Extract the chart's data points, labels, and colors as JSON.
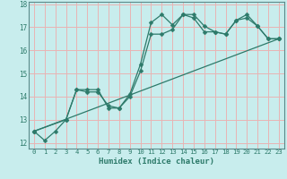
{
  "title": "",
  "xlabel": "Humidex (Indice chaleur)",
  "background_color": "#c8eded",
  "line_color": "#2d7a6a",
  "grid_color": "#e8b4b4",
  "spine_color": "#5a8a8a",
  "xlim": [
    -0.5,
    23.5
  ],
  "ylim": [
    11.75,
    18.1
  ],
  "yticks": [
    12,
    13,
    14,
    15,
    16,
    17,
    18
  ],
  "xticks": [
    0,
    1,
    2,
    3,
    4,
    5,
    6,
    7,
    8,
    9,
    10,
    11,
    12,
    13,
    14,
    15,
    16,
    17,
    18,
    19,
    20,
    21,
    22,
    23
  ],
  "line1_x": [
    0,
    1,
    2,
    3,
    4,
    5,
    6,
    7,
    8,
    9,
    10,
    11,
    12,
    13,
    14,
    15,
    16,
    17,
    18,
    19,
    20,
    21,
    22,
    23
  ],
  "line1_y": [
    12.5,
    12.1,
    12.5,
    13.0,
    14.3,
    14.3,
    14.3,
    13.5,
    13.5,
    14.1,
    15.4,
    17.2,
    17.55,
    17.1,
    17.55,
    17.55,
    17.05,
    16.8,
    16.7,
    17.3,
    17.55,
    17.05,
    16.5,
    16.5
  ],
  "line2_x": [
    0,
    3,
    4,
    5,
    6,
    7,
    8,
    9,
    10,
    11,
    12,
    13,
    14,
    15,
    16,
    17,
    18,
    19,
    20,
    21,
    22,
    23
  ],
  "line2_y": [
    12.5,
    13.0,
    14.3,
    14.2,
    14.2,
    13.6,
    13.5,
    14.0,
    15.1,
    16.7,
    16.7,
    16.9,
    17.55,
    17.4,
    16.8,
    16.8,
    16.7,
    17.3,
    17.4,
    17.05,
    16.5,
    16.5
  ],
  "line3_x": [
    0,
    23
  ],
  "line3_y": [
    12.5,
    16.5
  ],
  "marker_size": 2.5,
  "linewidth": 0.9
}
